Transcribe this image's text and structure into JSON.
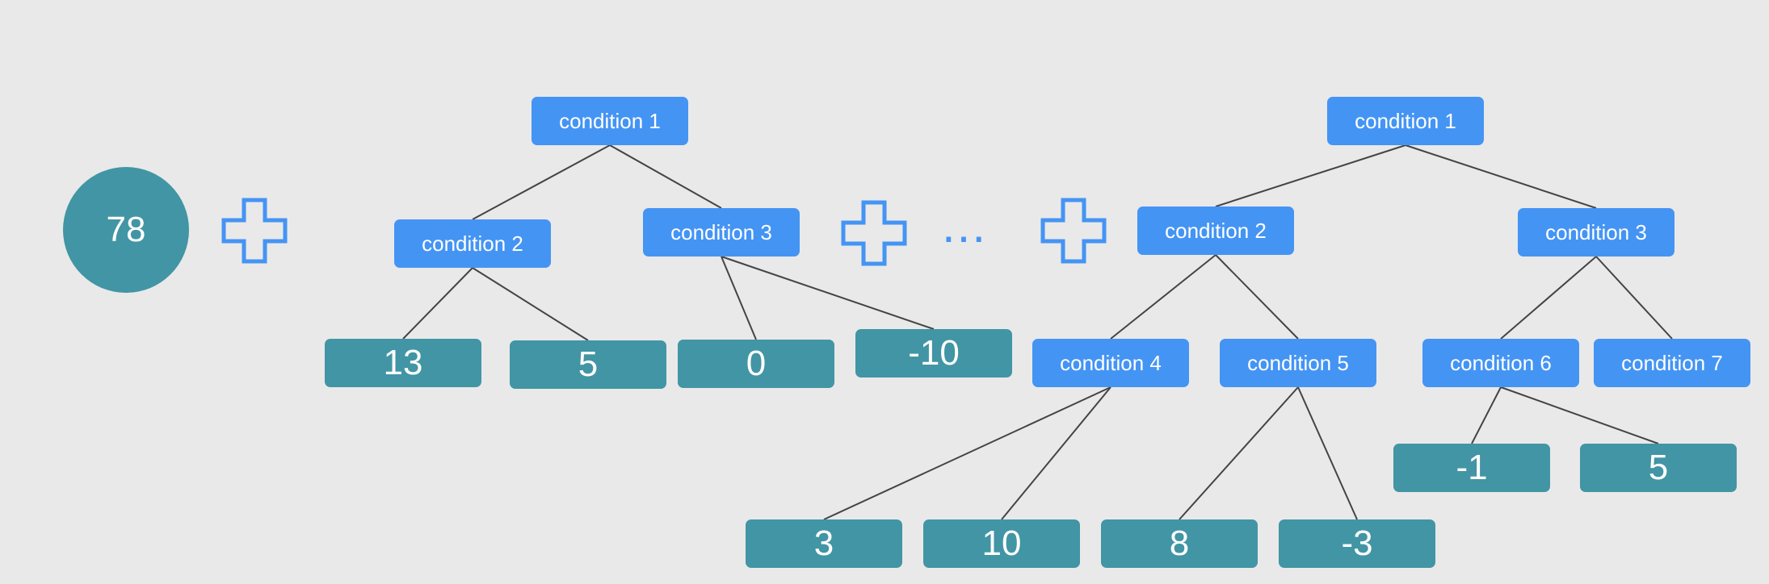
{
  "base_score": "78",
  "ellipsis": "...",
  "tree1": {
    "root": "condition 1",
    "left": "condition 2",
    "right": "condition 3",
    "left_leaves": [
      "13",
      "5"
    ],
    "right_leaves": [
      "0",
      "-10"
    ]
  },
  "treeN": {
    "root": "condition 1",
    "c2": "condition 2",
    "c3": "condition 3",
    "c4": "condition 4",
    "c5": "condition 5",
    "c6": "condition 6",
    "c7": "condition 7",
    "c4_leaves": [
      "3",
      "10"
    ],
    "c5_leaves": [
      "8",
      "-3"
    ],
    "c6_leaves": [
      "-1",
      "5"
    ]
  },
  "colors": {
    "condition_node": "#4494f4",
    "leaf_node": "#4295a4",
    "plus_icon": "#4494f4",
    "edge": "#444444",
    "background": "#e9e9e9"
  }
}
